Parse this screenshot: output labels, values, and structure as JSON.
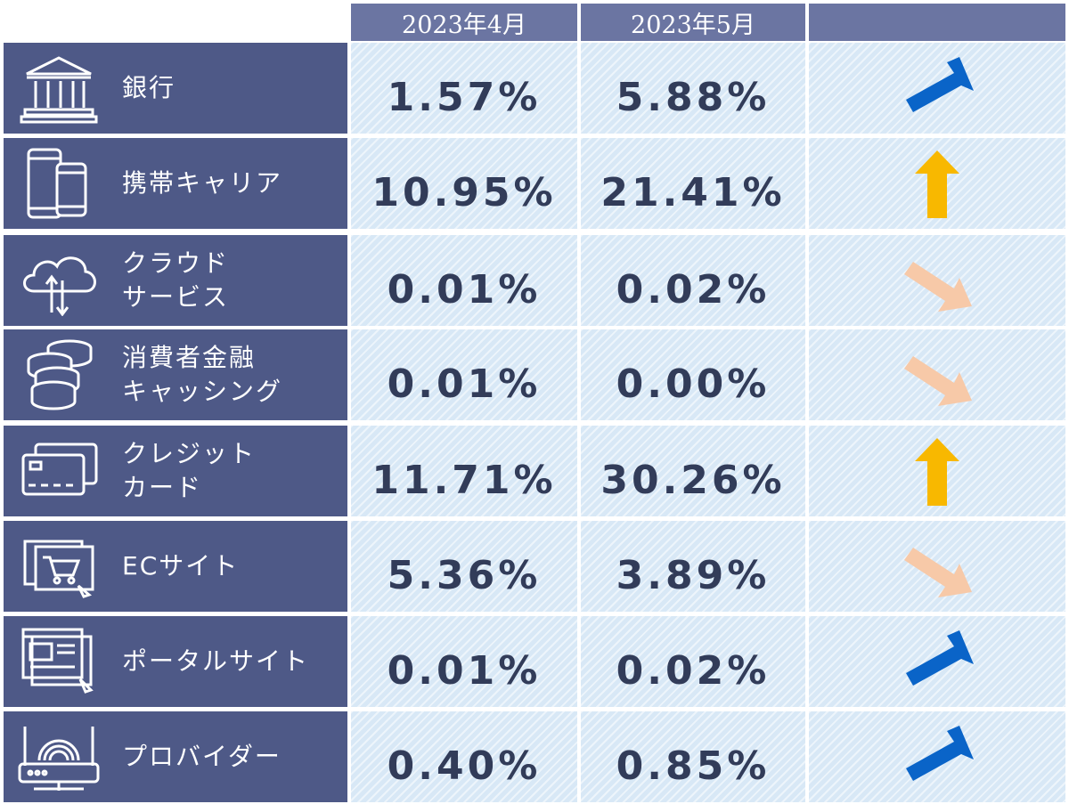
{
  "headers": {
    "col1": "2023年4月",
    "col2": "2023年5月",
    "col3": ""
  },
  "rows": [
    {
      "icon": "bank-icon",
      "label_line1": "銀行",
      "label_line2": "",
      "april": "1.57%",
      "may": "5.88%",
      "trend": "up-right",
      "trend_color": "#0a64c8"
    },
    {
      "icon": "smartphone-icon",
      "label_line1": "携帯キャリア",
      "label_line2": "",
      "april": "10.95%",
      "may": "21.41%",
      "trend": "up",
      "trend_color": "#f8b800"
    },
    {
      "icon": "cloud-icon",
      "label_line1": "クラウド",
      "label_line2": "サービス",
      "april": "0.01%",
      "may": "0.02%",
      "trend": "down-right",
      "trend_color": "#f7c9a8"
    },
    {
      "icon": "coins-icon",
      "label_line1": "消費者金融",
      "label_line2": "キャッシング",
      "april": "0.01%",
      "may": "0.00%",
      "trend": "down-right",
      "trend_color": "#f7c9a8"
    },
    {
      "icon": "credit-card-icon",
      "label_line1": "クレジット",
      "label_line2": "カード",
      "april": "11.71%",
      "may": "30.26%",
      "trend": "up",
      "trend_color": "#f8b800"
    },
    {
      "icon": "shopping-cart-icon",
      "label_line1": "ECサイト",
      "label_line2": "",
      "april": "5.36%",
      "may": "3.89%",
      "trend": "down-right",
      "trend_color": "#f7c9a8"
    },
    {
      "icon": "web-portal-icon",
      "label_line1": "ポータルサイト",
      "label_line2": "",
      "april": "0.01%",
      "may": "0.02%",
      "trend": "up-right",
      "trend_color": "#0a64c8"
    },
    {
      "icon": "router-icon",
      "label_line1": "プロバイダー",
      "label_line2": "",
      "april": "0.40%",
      "may": "0.85%",
      "trend": "up-right",
      "trend_color": "#0a64c8"
    }
  ]
}
